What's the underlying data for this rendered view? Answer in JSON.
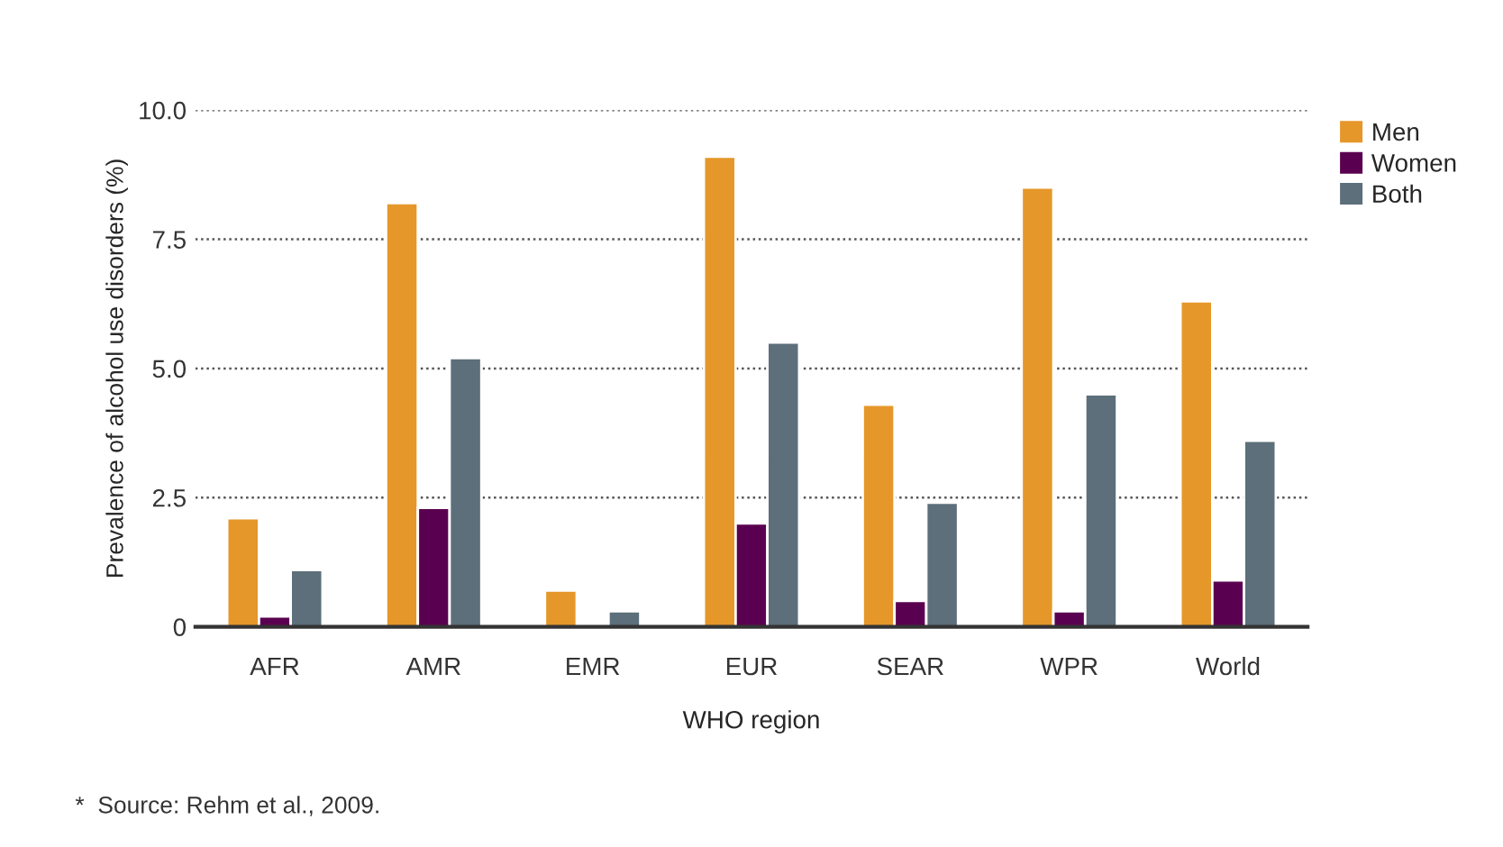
{
  "chart_data": {
    "type": "bar",
    "xlabel": "WHO region",
    "ylabel": "Prevalence of alcohol use disorders (%)",
    "categories": [
      "AFR",
      "AMR",
      "EMR",
      "EUR",
      "SEAR",
      "WPR",
      "World"
    ],
    "series": [
      {
        "name": "Men",
        "color": "#e5972a",
        "values": [
          2.1,
          8.2,
          0.7,
          9.1,
          4.3,
          8.5,
          6.3
        ]
      },
      {
        "name": "Women",
        "color": "#5a0050",
        "values": [
          0.2,
          2.3,
          null,
          2.0,
          0.5,
          0.3,
          0.9
        ]
      },
      {
        "name": "Both",
        "color": "#5c6f7a",
        "values": [
          1.1,
          5.2,
          0.3,
          5.5,
          2.4,
          4.5,
          3.6
        ]
      }
    ],
    "ylim": [
      0,
      10
    ],
    "yticks": [
      0,
      {
        "value": 2.5,
        "label": "2.5"
      },
      {
        "value": 5,
        "label": "5.0"
      },
      {
        "value": 7.5,
        "label": "7.5"
      },
      {
        "value": 10,
        "label": "10.0"
      }
    ],
    "grid": "y",
    "legend": "top right",
    "annotations": [
      "*  Source: Rehm et al., 2009."
    ]
  }
}
